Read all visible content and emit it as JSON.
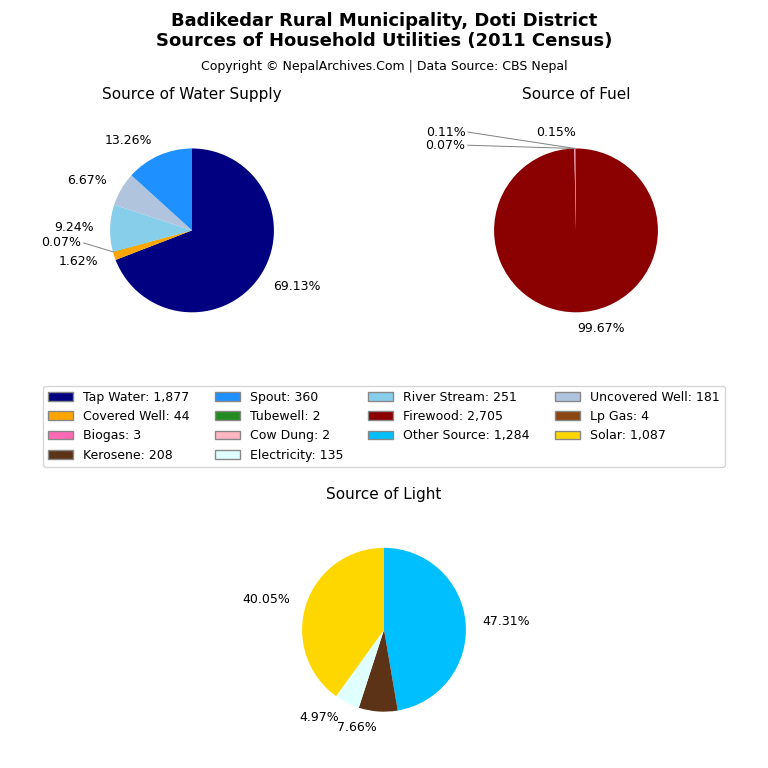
{
  "title": "Badikedar Rural Municipality, Doti District\nSources of Household Utilities (2011 Census)",
  "subtitle": "Copyright © NepalArchives.Com | Data Source: CBS Nepal",
  "legend": "center",
  "legend_entries": [
    {
      "label": "Tap Water: 1,877",
      "color": "#000080"
    },
    {
      "label": "Spout: 360",
      "color": "#1E90FF"
    },
    {
      "label": "River Stream: 251",
      "color": "#87CEEB"
    },
    {
      "label": "Uncovered Well: 181",
      "color": "#B0C4DE"
    },
    {
      "label": "Covered Well: 44",
      "color": "#FFA500"
    },
    {
      "label": "Tubewell: 2",
      "color": "#228B22"
    },
    {
      "label": "Firewood: 2,705",
      "color": "#8B0000"
    },
    {
      "label": "Lp Gas: 4",
      "color": "#8B4513"
    },
    {
      "label": "Biogas: 3",
      "color": "#FF69B4"
    },
    {
      "label": "Cow Dung: 2",
      "color": "#FFB6C1"
    },
    {
      "label": "Other Source: 1,284",
      "color": "#00BFFF"
    },
    {
      "label": "Solar: 1,087",
      "color": "#FFD700"
    },
    {
      "label": "Kerosene: 208",
      "color": "#5C3317"
    },
    {
      "label": "Electricity: 135",
      "color": "#E0FFFF"
    }
  ],
  "chart_data": [
    {
      "type": "pie",
      "title": "Source of Water Supply",
      "categories": [
        "Tap Water: 1,877",
        "Covered Well: 44",
        "Tubewell: 2",
        "River Stream: 251",
        "Uncovered Well: 181",
        "Spout: 360"
      ],
      "values": [
        69.13,
        1.62,
        0.07,
        9.24,
        6.67,
        13.26
      ],
      "value_labels": [
        "69.13%",
        "1.62%",
        "0.07%",
        "9.24%",
        "6.67%",
        "13.26%"
      ],
      "colors": [
        "#000080",
        "#FFA500",
        "#228B22",
        "#87CEEB",
        "#B0C4DE",
        "#1E90FF"
      ],
      "data_labels": true
    },
    {
      "type": "pie",
      "title": "Source of Fuel",
      "categories": [
        "Firewood: 2,705",
        "Cow Dung: 2",
        "Biogas: 3",
        "Lp Gas: 4"
      ],
      "values": [
        99.67,
        0.07,
        0.11,
        0.15
      ],
      "value_labels": [
        "99.67%",
        "0.07%",
        "0.11%",
        "0.15%"
      ],
      "colors": [
        "#8B0000",
        "#FFB6C1",
        "#FF69B4",
        "#8B4513"
      ],
      "data_labels": true
    },
    {
      "type": "pie",
      "title": "Source of Light",
      "categories": [
        "Other Source: 1,284",
        "Kerosene: 208",
        "Electricity: 135",
        "Solar: 1,087"
      ],
      "values": [
        47.31,
        7.66,
        4.97,
        40.05
      ],
      "value_labels": [
        "47.31%",
        "7.66%",
        "4.97%",
        "40.05%"
      ],
      "colors": [
        "#00BFFF",
        "#5C3317",
        "#E0FFFF",
        "#FFD700"
      ],
      "data_labels": true
    }
  ]
}
